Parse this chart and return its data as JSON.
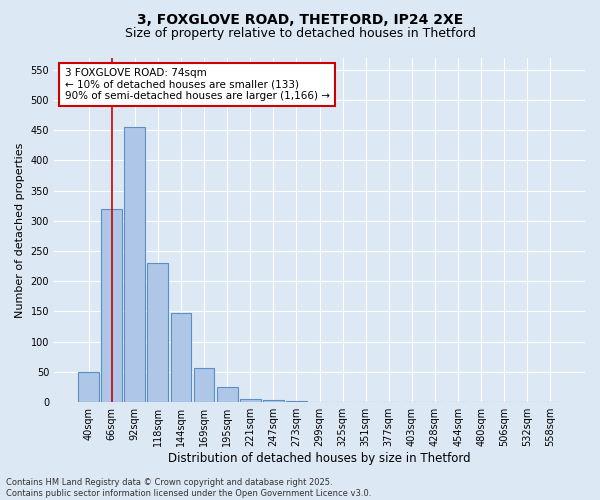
{
  "title_line1": "3, FOXGLOVE ROAD, THETFORD, IP24 2XE",
  "title_line2": "Size of property relative to detached houses in Thetford",
  "xlabel": "Distribution of detached houses by size in Thetford",
  "ylabel": "Number of detached properties",
  "annotation_line1": "3 FOXGLOVE ROAD: 74sqm",
  "annotation_line2": "← 10% of detached houses are smaller (133)",
  "annotation_line3": "90% of semi-detached houses are larger (1,166) →",
  "footer_line1": "Contains HM Land Registry data © Crown copyright and database right 2025.",
  "footer_line2": "Contains public sector information licensed under the Open Government Licence v3.0.",
  "categories": [
    "40sqm",
    "66sqm",
    "92sqm",
    "118sqm",
    "144sqm",
    "169sqm",
    "195sqm",
    "221sqm",
    "247sqm",
    "273sqm",
    "299sqm",
    "325sqm",
    "351sqm",
    "377sqm",
    "403sqm",
    "428sqm",
    "454sqm",
    "480sqm",
    "506sqm",
    "532sqm",
    "558sqm"
  ],
  "values": [
    50,
    320,
    455,
    230,
    148,
    57,
    25,
    5,
    3,
    2,
    1,
    1,
    0,
    0,
    0,
    0,
    0,
    0,
    0,
    0,
    0
  ],
  "bar_color": "#aec6e8",
  "bar_edge_color": "#5a8fc2",
  "vline_x": 1.0,
  "vline_color": "#cc0000",
  "annotation_box_color": "#cc0000",
  "ylim": [
    0,
    570
  ],
  "yticks": [
    0,
    50,
    100,
    150,
    200,
    250,
    300,
    350,
    400,
    450,
    500,
    550
  ],
  "bg_color": "#dde8f5",
  "plot_bg_color": "#dde8f5",
  "grid_color": "#ffffff",
  "title_fontsize": 10,
  "subtitle_fontsize": 9,
  "annotation_fontsize": 7.5,
  "ylabel_fontsize": 8,
  "xlabel_fontsize": 8.5,
  "tick_fontsize": 7,
  "footer_fontsize": 6
}
